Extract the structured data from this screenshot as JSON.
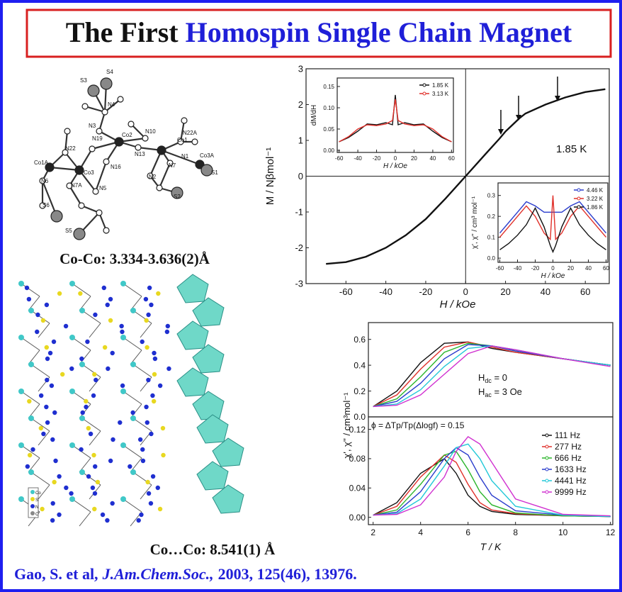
{
  "title": {
    "part1": "The First",
    "part2": "Homospin Single Chain Magnet"
  },
  "molecule_labels": [
    "S3",
    "S4",
    "N4",
    "N3",
    "N19",
    "Co2",
    "N10",
    "N22",
    "N13",
    "Co1",
    "N1",
    "N22A",
    "Co1A",
    "Co3",
    "N16",
    "N7",
    "Co3A",
    "S1",
    "N6",
    "N7A",
    "N5",
    "N2",
    "S6",
    "S2",
    "S5"
  ],
  "caption_distance": "Co-Co: 3.334-3.636(2)Å",
  "packing_legend": [
    "Co",
    "S",
    "N",
    "C"
  ],
  "caption_chain": "Co…Co: 8.541(1) Å",
  "citation": {
    "authors": "Gao, S. et al,",
    "journal": "J.Am.Chem.Soc.,",
    "details": "2003, 125(46), 13976."
  },
  "chart_data": [
    {
      "type": "line",
      "xlabel": "H / kOe",
      "ylabel": "M / Nβmol⁻¹",
      "x": [
        -70,
        -60,
        -50,
        -40,
        -30,
        -20,
        -10,
        0,
        10,
        17,
        20,
        27,
        30,
        40,
        46,
        50,
        60,
        70
      ],
      "series": [
        {
          "color": "#111111",
          "values": [
            -2.45,
            -2.4,
            -2.25,
            -2.0,
            -1.65,
            -1.2,
            -0.62,
            0,
            0.62,
            1.05,
            1.25,
            1.62,
            1.75,
            2.0,
            2.12,
            2.2,
            2.35,
            2.43
          ]
        }
      ],
      "xlim": [
        -80,
        72
      ],
      "ylim": [
        -3,
        3
      ],
      "xticks": [
        -60,
        -40,
        -20,
        0,
        20,
        40,
        60
      ],
      "yticks": [
        -3,
        -2,
        -1,
        0,
        1,
        2,
        3
      ],
      "annotations": [
        "1.85 K"
      ]
    },
    {
      "type": "line",
      "xlabel": "H / kOe",
      "ylabel": "dM/dH",
      "x": [
        -60,
        -50,
        -40,
        -30,
        -20,
        -10,
        -3,
        0,
        3,
        10,
        20,
        30,
        40,
        50,
        60
      ],
      "series": [
        {
          "name": "1.85 K",
          "color": "#111111",
          "values": [
            0.02,
            0.03,
            0.045,
            0.062,
            0.06,
            0.065,
            0.06,
            0.13,
            0.06,
            0.065,
            0.06,
            0.062,
            0.045,
            0.03,
            0.02
          ]
        },
        {
          "name": "3.13 K",
          "color": "#e0302a",
          "values": [
            0.02,
            0.032,
            0.05,
            0.06,
            0.058,
            0.062,
            0.07,
            0.12,
            0.07,
            0.062,
            0.058,
            0.06,
            0.05,
            0.032,
            0.02
          ]
        }
      ],
      "xlim": [
        -62,
        62
      ],
      "ylim": [
        -0.005,
        0.17
      ],
      "xticks": [
        -60,
        -40,
        -20,
        0,
        20,
        40,
        60
      ],
      "yticks": [
        {
          "value": 0,
          "label": "0.00"
        },
        0.05,
        {
          "value": 0.1,
          "label": "0.10"
        },
        0.15
      ],
      "legend": "upper right"
    },
    {
      "type": "line",
      "xlabel": "H / kOe",
      "ylabel": "χ', χ'' / cm³ mol⁻¹",
      "x": [
        -60,
        -50,
        -40,
        -30,
        -20,
        -10,
        -3,
        0,
        3,
        10,
        20,
        30,
        40,
        50,
        60
      ],
      "series": [
        {
          "name": "4.46 K",
          "color": "#2a3ccc",
          "values": [
            0.12,
            0.17,
            0.22,
            0.27,
            0.25,
            0.22,
            0.22,
            0.22,
            0.22,
            0.22,
            0.25,
            0.27,
            0.22,
            0.17,
            0.12
          ]
        },
        {
          "name": "3.22 K",
          "color": "#e0302a",
          "values": [
            0.1,
            0.15,
            0.2,
            0.25,
            0.2,
            0.12,
            0.09,
            0.3,
            0.09,
            0.12,
            0.2,
            0.25,
            0.2,
            0.15,
            0.1
          ]
        },
        {
          "name": "1.86 K",
          "color": "#111111",
          "values": [
            0.04,
            0.07,
            0.11,
            0.16,
            0.24,
            0.15,
            0.06,
            0.03,
            0.06,
            0.15,
            0.24,
            0.16,
            0.11,
            0.07,
            0.04
          ]
        }
      ],
      "xlim": [
        -62,
        62
      ],
      "ylim": [
        -0.02,
        0.36
      ],
      "xticks": [
        -60,
        -40,
        -20,
        0,
        20,
        40,
        60
      ],
      "yticks": [
        {
          "value": 0,
          "label": "0.0"
        },
        0.1,
        0.2,
        0.3
      ],
      "legend": "upper right"
    },
    {
      "type": "line",
      "ylabel": "χ', χ'' / cm³mol⁻¹",
      "x": [
        2,
        3,
        4,
        5,
        6,
        7,
        8,
        10,
        12
      ],
      "series": [
        {
          "color": "#111111",
          "values": [
            0.08,
            0.2,
            0.42,
            0.57,
            0.58,
            0.53,
            0.5,
            0.45,
            0.4
          ]
        },
        {
          "color": "#e0302a",
          "values": [
            0.08,
            0.17,
            0.37,
            0.54,
            0.58,
            0.54,
            0.5,
            0.45,
            0.4
          ]
        },
        {
          "color": "#2bb52b",
          "values": [
            0.08,
            0.14,
            0.31,
            0.5,
            0.57,
            0.55,
            0.51,
            0.45,
            0.4
          ]
        },
        {
          "color": "#2a3ccc",
          "values": [
            0.08,
            0.12,
            0.26,
            0.45,
            0.56,
            0.55,
            0.51,
            0.45,
            0.4
          ]
        },
        {
          "color": "#22c8d8",
          "values": [
            0.08,
            0.1,
            0.21,
            0.39,
            0.53,
            0.55,
            0.52,
            0.45,
            0.4
          ]
        },
        {
          "color": "#d030d0",
          "values": [
            0.08,
            0.09,
            0.17,
            0.33,
            0.49,
            0.55,
            0.52,
            0.45,
            0.39
          ]
        }
      ],
      "xlim": [
        1.8,
        12.1
      ],
      "ylim": [
        0,
        0.73
      ],
      "yticks": [
        {
          "value": 0,
          "label": "0.0"
        },
        0.2,
        0.4,
        0.6
      ],
      "annotations": [
        {
          "main": "H",
          "sub": "dc",
          "rest": " = 0"
        },
        {
          "main": "H",
          "sub": "ac",
          "rest": " = 3 Oe"
        }
      ]
    },
    {
      "type": "line",
      "xlabel": "T / K",
      "x": [
        2,
        3,
        4,
        5,
        5.5,
        6,
        6.5,
        7,
        8,
        10,
        12
      ],
      "series": [
        {
          "name": "111 Hz",
          "color": "#111111",
          "values": [
            0.003,
            0.02,
            0.06,
            0.08,
            0.06,
            0.03,
            0.015,
            0.008,
            0.004,
            0.002,
            0.001
          ]
        },
        {
          "name": "277 Hz",
          "color": "#e0302a",
          "values": [
            0.003,
            0.015,
            0.055,
            0.085,
            0.075,
            0.045,
            0.02,
            0.01,
            0.005,
            0.002,
            0.001
          ]
        },
        {
          "name": "666 Hz",
          "color": "#2bb52b",
          "values": [
            0.003,
            0.01,
            0.045,
            0.085,
            0.09,
            0.065,
            0.035,
            0.017,
            0.006,
            0.002,
            0.001
          ]
        },
        {
          "name": "1633 Hz",
          "color": "#2a3ccc",
          "values": [
            0.003,
            0.007,
            0.035,
            0.08,
            0.095,
            0.085,
            0.055,
            0.03,
            0.009,
            0.003,
            0.001
          ]
        },
        {
          "name": "4441 Hz",
          "color": "#22c8d8",
          "values": [
            0.003,
            0.005,
            0.025,
            0.07,
            0.095,
            0.1,
            0.08,
            0.05,
            0.015,
            0.003,
            0.001
          ]
        },
        {
          "name": "9999 Hz",
          "color": "#d030d0",
          "values": [
            0.003,
            0.004,
            0.017,
            0.055,
            0.09,
            0.11,
            0.1,
            0.075,
            0.025,
            0.004,
            0.002
          ]
        }
      ],
      "xlim": [
        1.8,
        12.1
      ],
      "ylim": [
        -0.01,
        0.137
      ],
      "xticks": [
        2,
        4,
        6,
        8,
        10,
        12
      ],
      "yticks": [
        {
          "value": 0,
          "label": "0.00"
        },
        0.04,
        0.08,
        0.12
      ],
      "legend": "upper right",
      "annotations": [
        "ϕ = ΔTp/Tp(Δlogf) = 0.15"
      ]
    }
  ]
}
